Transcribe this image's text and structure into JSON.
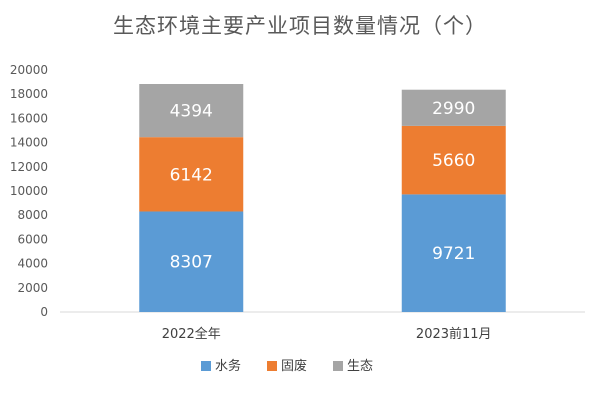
{
  "chart_data": {
    "type": "bar",
    "stacked": true,
    "title": "生态环境主要产业项目数量情况（个）",
    "categories": [
      "2022全年",
      "2023前11月"
    ],
    "series": [
      {
        "name": "水务",
        "values": [
          8307,
          9721
        ],
        "color": "#5b9bd5"
      },
      {
        "name": "固废",
        "values": [
          6142,
          5660
        ],
        "color": "#ed7d31"
      },
      {
        "name": "生态",
        "values": [
          4394,
          2990
        ],
        "color": "#a5a5a5"
      }
    ],
    "ylim": [
      0,
      20000
    ],
    "yticks": [
      0,
      2000,
      4000,
      6000,
      8000,
      10000,
      12000,
      14000,
      16000,
      18000,
      20000
    ],
    "grid": false,
    "legend": "bottom"
  }
}
